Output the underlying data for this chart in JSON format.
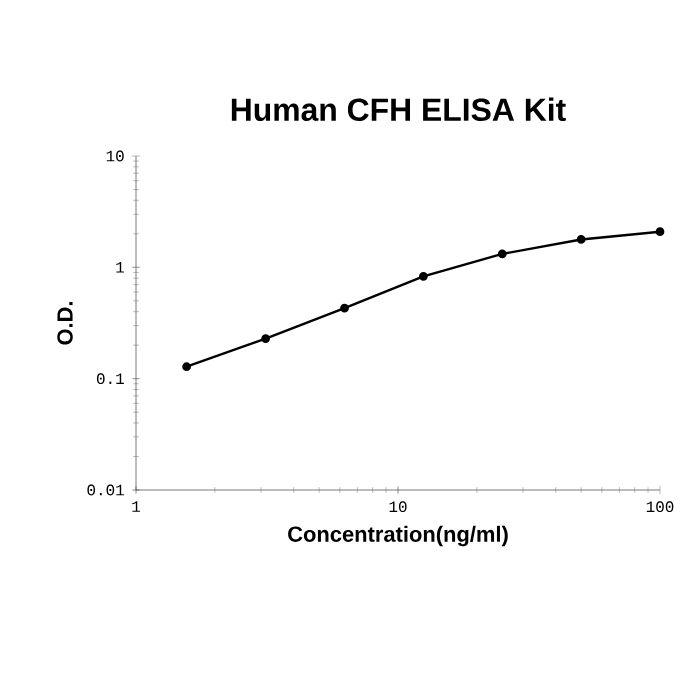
{
  "chart_data": {
    "type": "line",
    "title": "Human CFH ELISA Kit",
    "xlabel": "Concentration(ng/ml)",
    "ylabel": "O.D.",
    "x": [
      1.56,
      3.125,
      6.25,
      12.5,
      25,
      50,
      100
    ],
    "series": [
      {
        "color": "#000000",
        "values": [
          0.128,
          0.229,
          0.43,
          0.83,
          1.32,
          1.78,
          2.09
        ]
      }
    ],
    "log": "xy",
    "xlim": [
      1,
      100
    ],
    "ylim": [
      0.01,
      10
    ],
    "xticks": [
      1,
      10,
      100
    ],
    "yticks": [
      0.01,
      0.1,
      1,
      10
    ],
    "grid": false,
    "marker": "circle",
    "line_style": "solid"
  }
}
